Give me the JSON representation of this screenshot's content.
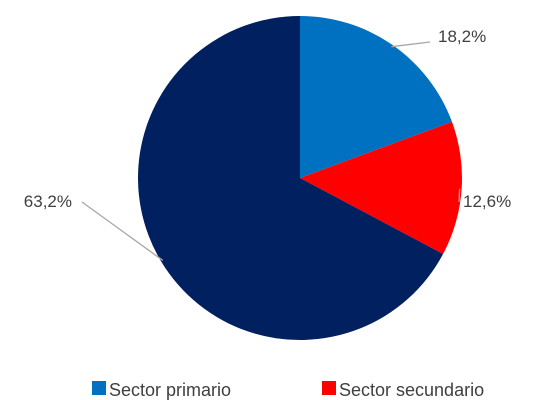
{
  "chart_data": {
    "type": "pie",
    "categories": [
      "Sector primario",
      "Sector secundario",
      ""
    ],
    "values": [
      18.2,
      12.6,
      63.2
    ],
    "labels": [
      "18,2%",
      "12,6%",
      "63,2%"
    ],
    "colors": [
      "#0070C0",
      "#FF0000",
      "#002060"
    ],
    "legend": [
      "Sector primario",
      "Sector secundario"
    ],
    "legend_position": "bottom"
  }
}
